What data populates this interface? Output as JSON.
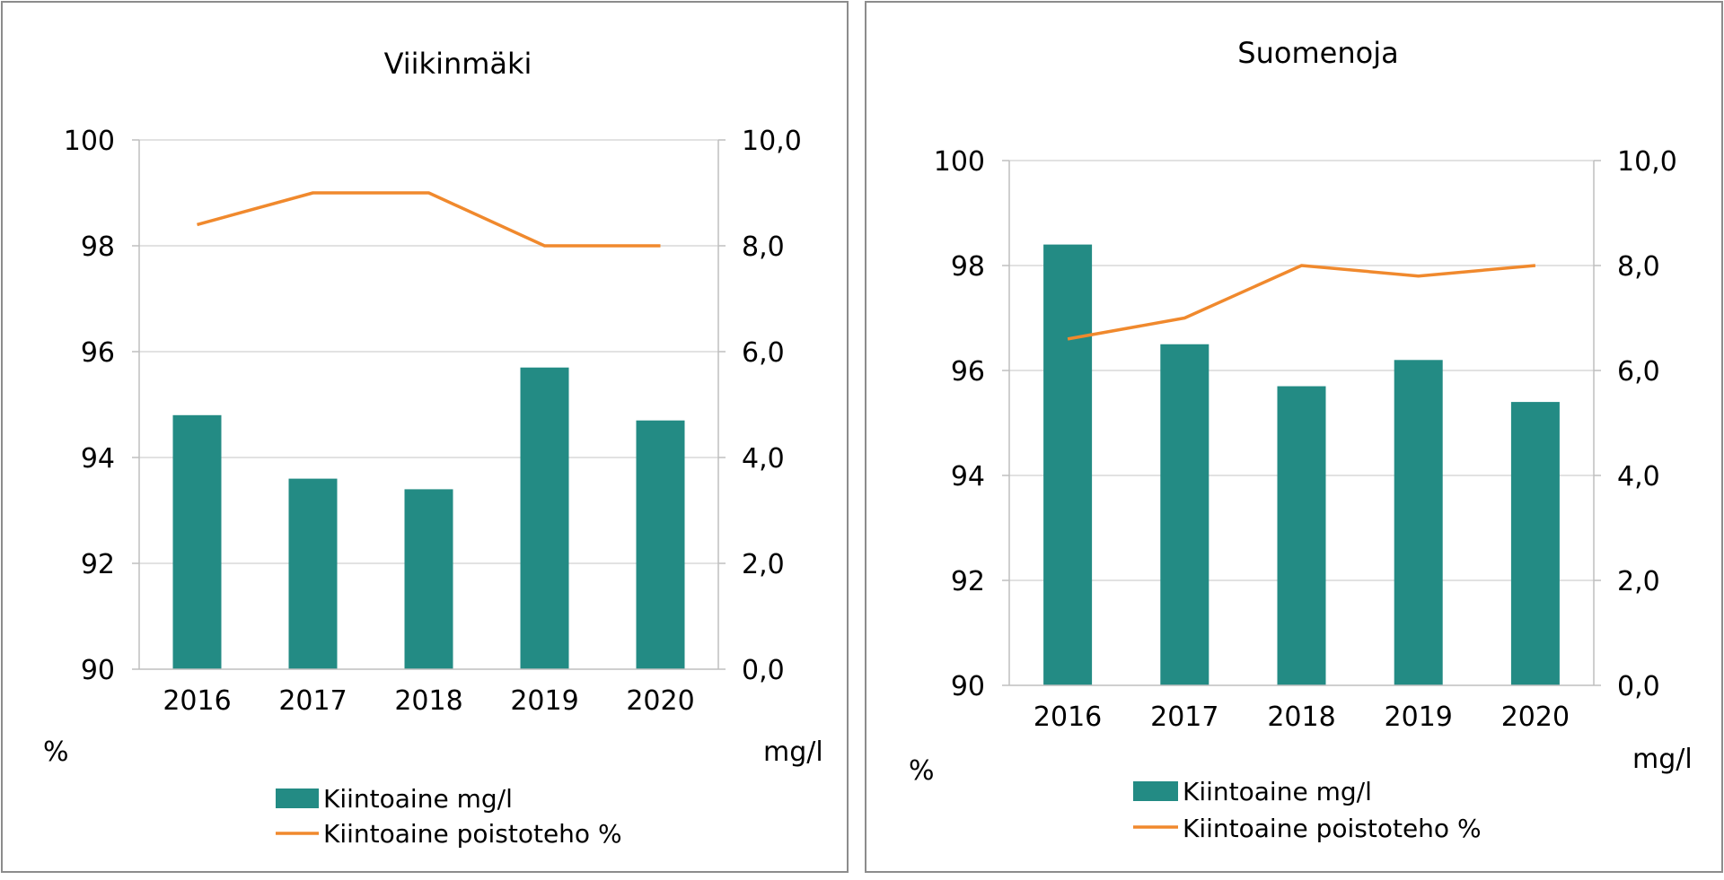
{
  "colors": {
    "bar": "#238b84",
    "line": "#f0892d",
    "grid": "#d9d9d9",
    "axis": "#bfbfbf",
    "frame": "#8c8c8c"
  },
  "chart_data": [
    {
      "type": "bar+line",
      "title": "Viikinmäki",
      "categories": [
        "2016",
        "2017",
        "2018",
        "2019",
        "2020"
      ],
      "left_axis": {
        "range": [
          90,
          100
        ],
        "ticks": [
          "90",
          "92",
          "94",
          "96",
          "98",
          "100"
        ],
        "label": "%"
      },
      "right_axis": {
        "range": [
          0,
          10
        ],
        "ticks": [
          "0,0",
          "2,0",
          "4,0",
          "6,0",
          "8,0",
          "10,0"
        ],
        "label": "mg/l"
      },
      "grid": true,
      "legend_position": "bottom",
      "series": [
        {
          "name": "Kiintoaine mg/l",
          "kind": "bar",
          "axis": "right",
          "values": [
            4.8,
            3.6,
            3.4,
            5.7,
            4.7
          ]
        },
        {
          "name": "Kiintoaine poistoteho %",
          "kind": "line",
          "axis": "left",
          "values": [
            98.4,
            99.0,
            99.0,
            98.0,
            98.0
          ]
        }
      ]
    },
    {
      "type": "bar+line",
      "title": "Suomenoja",
      "categories": [
        "2016",
        "2017",
        "2018",
        "2019",
        "2020"
      ],
      "left_axis": {
        "range": [
          90,
          100
        ],
        "ticks": [
          "90",
          "92",
          "94",
          "96",
          "98",
          "100"
        ],
        "label": "%"
      },
      "right_axis": {
        "range": [
          0,
          10
        ],
        "ticks": [
          "0,0",
          "2,0",
          "4,0",
          "6,0",
          "8,0",
          "10,0"
        ],
        "label": "mg/l"
      },
      "grid": true,
      "legend_position": "bottom",
      "series": [
        {
          "name": "Kiintoaine mg/l",
          "kind": "bar",
          "axis": "right",
          "values": [
            8.4,
            6.5,
            5.7,
            6.2,
            5.4
          ]
        },
        {
          "name": "Kiintoaine poistoteho %",
          "kind": "line",
          "axis": "left",
          "values": [
            96.6,
            97.0,
            98.0,
            97.8,
            98.0
          ]
        }
      ]
    }
  ]
}
